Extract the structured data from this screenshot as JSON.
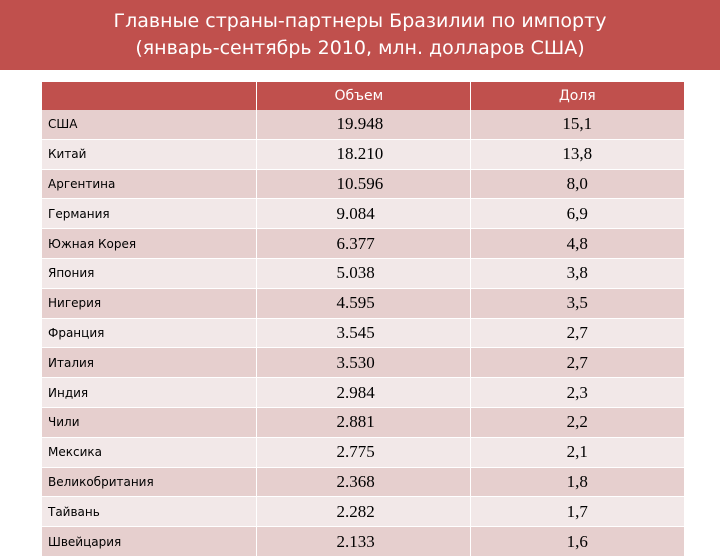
{
  "title": {
    "line1": "Главные страны-партнеры Бразилии по импорту",
    "line2": "(январь-сентябрь 2010, млн. долларов США)"
  },
  "table": {
    "headers": {
      "country": "",
      "volume": "Объем",
      "share": "Доля"
    },
    "rows": [
      {
        "country": "США",
        "volume": "19.948",
        "share": "15,1"
      },
      {
        "country": "Китай",
        "volume": "18.210",
        "share": "13,8"
      },
      {
        "country": "Аргентина",
        "volume": "10.596",
        "share": "8,0"
      },
      {
        "country": "Германия",
        "volume": "9.084",
        "share": "6,9"
      },
      {
        "country": "Южная Корея",
        "volume": "6.377",
        "share": "4,8"
      },
      {
        "country": "Япония",
        "volume": "5.038",
        "share": "3,8"
      },
      {
        "country": "Нигерия",
        "volume": "4.595",
        "share": "3,5"
      },
      {
        "country": "Франция",
        "volume": "3.545",
        "share": "2,7"
      },
      {
        "country": "Италия",
        "volume": "3.530",
        "share": "2,7"
      },
      {
        "country": "Индия",
        "volume": "2.984",
        "share": "2,3"
      },
      {
        "country": "Чили",
        "volume": "2.881",
        "share": "2,2"
      },
      {
        "country": "Мексика",
        "volume": "2.775",
        "share": "2,1"
      },
      {
        "country": "Великобритания",
        "volume": "2.368",
        "share": "1,8"
      },
      {
        "country": "Тайвань",
        "volume": "2.282",
        "share": "1,7"
      },
      {
        "country": "Швейцария",
        "volume": "2.133",
        "share": "1,6"
      }
    ]
  },
  "colors": {
    "accent": "#c0504d",
    "row_odd": "#e6cfce",
    "row_even": "#f2e8e8"
  }
}
